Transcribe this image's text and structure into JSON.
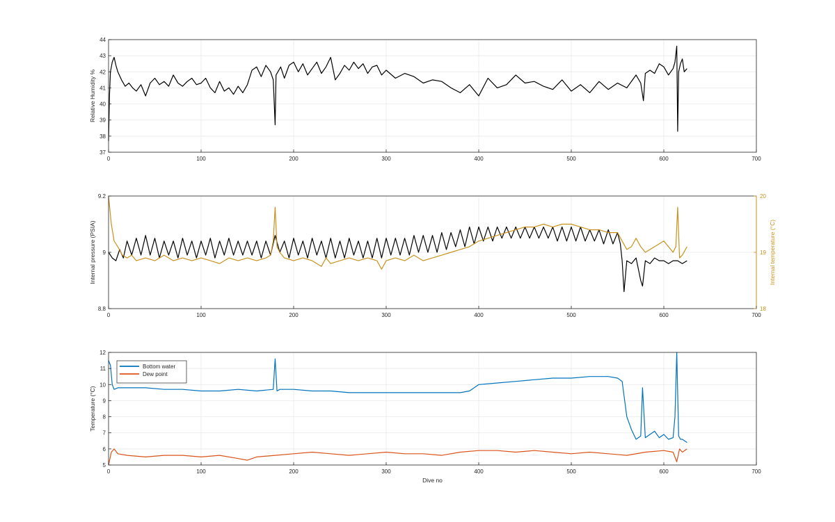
{
  "chart_data": [
    {
      "type": "line",
      "title": "",
      "xlabel": "",
      "ylabel": "Relative Humidity %",
      "xlim": [
        0,
        700
      ],
      "ylim": [
        37,
        44
      ],
      "xticks": [
        0,
        100,
        200,
        300,
        400,
        500,
        600,
        700
      ],
      "yticks": [
        37,
        38,
        39,
        40,
        41,
        42,
        43,
        44
      ],
      "grid": true,
      "series": [
        {
          "color": "#000000",
          "x": [
            0,
            1,
            2,
            4,
            6,
            8,
            10,
            14,
            18,
            22,
            26,
            30,
            35,
            40,
            45,
            50,
            55,
            60,
            65,
            70,
            75,
            80,
            85,
            90,
            95,
            100,
            105,
            110,
            115,
            120,
            125,
            130,
            135,
            140,
            145,
            150,
            155,
            160,
            165,
            170,
            175,
            178,
            180,
            181,
            183,
            186,
            190,
            195,
            200,
            205,
            210,
            215,
            220,
            225,
            230,
            235,
            240,
            245,
            250,
            255,
            260,
            265,
            270,
            275,
            280,
            285,
            290,
            295,
            300,
            310,
            320,
            330,
            340,
            350,
            360,
            370,
            380,
            390,
            400,
            410,
            420,
            430,
            440,
            450,
            460,
            470,
            480,
            490,
            500,
            510,
            520,
            530,
            540,
            550,
            560,
            570,
            575,
            578,
            580,
            585,
            590,
            595,
            600,
            605,
            610,
            612,
            614,
            615,
            616,
            618,
            620,
            622,
            625
          ],
          "y": [
            37.7,
            40.5,
            42.0,
            42.6,
            42.9,
            42.4,
            42.0,
            41.5,
            41.1,
            41.3,
            41.0,
            40.8,
            41.2,
            40.5,
            41.3,
            41.6,
            41.2,
            41.4,
            41.1,
            41.8,
            41.3,
            41.1,
            41.4,
            41.6,
            41.2,
            41.3,
            41.6,
            41.0,
            40.7,
            41.4,
            40.8,
            41.0,
            40.6,
            41.1,
            40.7,
            41.2,
            42.1,
            42.3,
            41.7,
            42.4,
            42.0,
            41.5,
            38.7,
            41.8,
            42.0,
            42.3,
            41.6,
            42.4,
            42.6,
            42.0,
            42.5,
            41.8,
            42.2,
            42.6,
            41.9,
            42.3,
            42.9,
            41.5,
            41.9,
            42.4,
            42.1,
            42.6,
            42.2,
            42.5,
            41.9,
            42.3,
            42.4,
            41.8,
            42.1,
            41.6,
            41.9,
            41.7,
            41.3,
            41.5,
            41.4,
            41.0,
            40.7,
            41.2,
            40.5,
            41.6,
            41.0,
            41.2,
            41.8,
            41.3,
            41.4,
            41.1,
            40.9,
            41.5,
            40.8,
            41.2,
            40.7,
            41.4,
            40.9,
            41.3,
            41.0,
            41.8,
            41.3,
            40.2,
            41.9,
            42.1,
            41.9,
            42.5,
            42.3,
            41.8,
            42.2,
            42.6,
            43.6,
            38.3,
            42.0,
            42.5,
            42.8,
            42.0,
            42.2
          ]
        }
      ]
    },
    {
      "type": "line",
      "title": "",
      "xlabel": "",
      "ylabel": "Internal pressure (PSIA)",
      "y2label": "Internal temperature (°C)",
      "xlim": [
        0,
        700
      ],
      "ylim": [
        8.8,
        9.2
      ],
      "y2lim": [
        18,
        20
      ],
      "xticks": [
        0,
        100,
        200,
        300,
        400,
        500,
        600,
        700
      ],
      "yticks": [
        8.8,
        9,
        9.2
      ],
      "y2ticks": [
        18,
        19,
        20
      ],
      "grid": true,
      "series": [
        {
          "axis": "left",
          "color": "#000000",
          "x": [
            0,
            4,
            8,
            12,
            16,
            20,
            25,
            30,
            35,
            40,
            45,
            50,
            55,
            60,
            65,
            70,
            75,
            80,
            85,
            90,
            95,
            100,
            105,
            110,
            115,
            120,
            125,
            130,
            135,
            140,
            145,
            150,
            155,
            160,
            165,
            170,
            175,
            180,
            185,
            190,
            195,
            200,
            205,
            210,
            215,
            220,
            225,
            230,
            235,
            240,
            245,
            250,
            255,
            260,
            265,
            270,
            275,
            280,
            285,
            290,
            295,
            300,
            305,
            310,
            315,
            320,
            325,
            330,
            335,
            340,
            345,
            350,
            355,
            360,
            365,
            370,
            375,
            380,
            385,
            390,
            395,
            400,
            405,
            410,
            415,
            420,
            425,
            430,
            435,
            440,
            445,
            450,
            455,
            460,
            465,
            470,
            475,
            480,
            485,
            490,
            495,
            500,
            505,
            510,
            515,
            520,
            525,
            530,
            535,
            540,
            545,
            550,
            553,
            555,
            557,
            560,
            565,
            570,
            575,
            577,
            580,
            585,
            590,
            595,
            600,
            605,
            610,
            615,
            620,
            625
          ],
          "y": [
            9.0,
            8.98,
            8.97,
            9.01,
            8.98,
            9.04,
            8.99,
            9.05,
            8.99,
            9.06,
            8.99,
            9.05,
            8.98,
            9.04,
            8.99,
            9.04,
            8.98,
            9.05,
            8.99,
            9.04,
            8.98,
            9.04,
            8.99,
            9.05,
            8.98,
            9.04,
            8.99,
            9.05,
            8.99,
            9.04,
            8.99,
            9.04,
            8.99,
            9.04,
            8.98,
            9.04,
            8.99,
            9.06,
            9.0,
            9.04,
            8.98,
            9.05,
            8.99,
            9.04,
            8.98,
            9.05,
            8.99,
            9.04,
            8.98,
            9.05,
            8.98,
            9.04,
            8.98,
            9.05,
            8.99,
            9.04,
            8.98,
            9.04,
            8.98,
            9.05,
            8.98,
            9.05,
            8.99,
            9.05,
            8.99,
            9.05,
            8.99,
            9.06,
            9.0,
            9.06,
            9.0,
            9.06,
            9.0,
            9.07,
            9.01,
            9.07,
            9.02,
            9.08,
            9.02,
            9.09,
            9.03,
            9.09,
            9.04,
            9.09,
            9.04,
            9.09,
            9.05,
            9.09,
            9.05,
            9.09,
            9.05,
            9.09,
            9.05,
            9.09,
            9.05,
            9.09,
            9.05,
            9.09,
            9.04,
            9.09,
            9.04,
            9.09,
            9.04,
            9.09,
            9.04,
            9.08,
            9.04,
            9.08,
            9.03,
            9.08,
            9.03,
            9.07,
            9.03,
            8.97,
            8.86,
            8.97,
            8.96,
            8.98,
            8.9,
            8.88,
            8.97,
            8.96,
            8.98,
            8.97,
            8.97,
            8.96,
            8.97,
            8.97,
            8.96,
            8.97
          ]
        },
        {
          "axis": "right",
          "color": "#C9911C",
          "x": [
            0,
            3,
            6,
            10,
            15,
            20,
            25,
            30,
            40,
            50,
            60,
            70,
            80,
            90,
            100,
            110,
            120,
            130,
            140,
            150,
            160,
            170,
            175,
            178,
            180,
            182,
            185,
            190,
            200,
            210,
            220,
            230,
            235,
            240,
            250,
            260,
            270,
            280,
            290,
            295,
            300,
            310,
            320,
            330,
            340,
            350,
            360,
            370,
            380,
            390,
            400,
            410,
            420,
            430,
            440,
            450,
            460,
            470,
            480,
            490,
            500,
            510,
            520,
            530,
            540,
            550,
            555,
            560,
            565,
            570,
            575,
            580,
            590,
            600,
            605,
            610,
            613,
            615,
            617,
            620,
            625
          ],
          "y": [
            20.0,
            19.5,
            19.2,
            19.1,
            18.95,
            18.9,
            18.95,
            18.85,
            18.9,
            18.85,
            18.95,
            18.85,
            18.9,
            18.85,
            18.9,
            18.85,
            18.8,
            18.9,
            18.85,
            18.9,
            18.85,
            18.9,
            18.95,
            19.2,
            19.8,
            19.1,
            19.0,
            18.9,
            18.85,
            18.9,
            18.85,
            18.75,
            18.9,
            18.8,
            18.85,
            18.9,
            18.85,
            18.9,
            18.85,
            18.7,
            18.85,
            18.9,
            18.85,
            18.95,
            18.85,
            18.9,
            18.95,
            19.0,
            19.05,
            19.1,
            19.2,
            19.25,
            19.3,
            19.35,
            19.4,
            19.45,
            19.45,
            19.5,
            19.45,
            19.5,
            19.5,
            19.45,
            19.4,
            19.4,
            19.35,
            19.35,
            19.2,
            19.05,
            19.1,
            19.25,
            19.1,
            19.0,
            19.1,
            19.2,
            19.1,
            19.0,
            19.1,
            19.8,
            18.9,
            18.95,
            19.1
          ]
        }
      ]
    },
    {
      "type": "line",
      "title": "",
      "xlabel": "Dive no",
      "ylabel": "Temperature (°C)",
      "xlim": [
        0,
        700
      ],
      "ylim": [
        5,
        12
      ],
      "xticks": [
        0,
        100,
        200,
        300,
        400,
        500,
        600,
        700
      ],
      "yticks": [
        5,
        6,
        7,
        8,
        9,
        10,
        11,
        12
      ],
      "grid": true,
      "legend": "top-left",
      "series": [
        {
          "name": "Bottom water",
          "color": "#0072BD",
          "x": [
            0,
            2,
            4,
            6,
            10,
            20,
            40,
            60,
            80,
            100,
            120,
            140,
            160,
            178,
            180,
            182,
            185,
            200,
            220,
            240,
            260,
            300,
            340,
            380,
            390,
            395,
            400,
            420,
            440,
            460,
            480,
            500,
            520,
            540,
            550,
            555,
            560,
            565,
            570,
            575,
            577,
            580,
            585,
            590,
            595,
            600,
            605,
            610,
            612,
            614,
            616,
            618,
            620,
            625
          ],
          "y": [
            11.5,
            11.2,
            10.0,
            9.7,
            9.8,
            9.8,
            9.8,
            9.7,
            9.7,
            9.6,
            9.6,
            9.7,
            9.6,
            9.7,
            11.6,
            9.6,
            9.7,
            9.7,
            9.6,
            9.6,
            9.5,
            9.5,
            9.5,
            9.5,
            9.6,
            9.8,
            10.0,
            10.1,
            10.2,
            10.3,
            10.4,
            10.4,
            10.5,
            10.5,
            10.4,
            10.2,
            8.0,
            7.2,
            6.6,
            6.8,
            9.8,
            6.7,
            6.9,
            7.1,
            6.7,
            6.9,
            6.6,
            6.7,
            8.0,
            12.0,
            6.8,
            6.6,
            6.6,
            6.4
          ]
        },
        {
          "name": "Dew point",
          "color": "#D95319",
          "x": [
            0,
            3,
            6,
            10,
            20,
            40,
            60,
            80,
            100,
            120,
            140,
            150,
            160,
            180,
            200,
            220,
            240,
            260,
            280,
            300,
            320,
            340,
            360,
            380,
            400,
            420,
            440,
            460,
            480,
            500,
            520,
            540,
            560,
            580,
            600,
            610,
            614,
            617,
            620,
            625
          ],
          "y": [
            5.0,
            5.8,
            6.0,
            5.7,
            5.6,
            5.5,
            5.6,
            5.6,
            5.5,
            5.6,
            5.4,
            5.3,
            5.5,
            5.6,
            5.7,
            5.8,
            5.7,
            5.6,
            5.7,
            5.8,
            5.7,
            5.7,
            5.6,
            5.8,
            5.9,
            5.9,
            5.8,
            5.9,
            5.8,
            5.7,
            5.8,
            5.7,
            5.6,
            5.8,
            5.9,
            5.8,
            5.2,
            6.0,
            5.8,
            6.0
          ]
        }
      ]
    }
  ]
}
